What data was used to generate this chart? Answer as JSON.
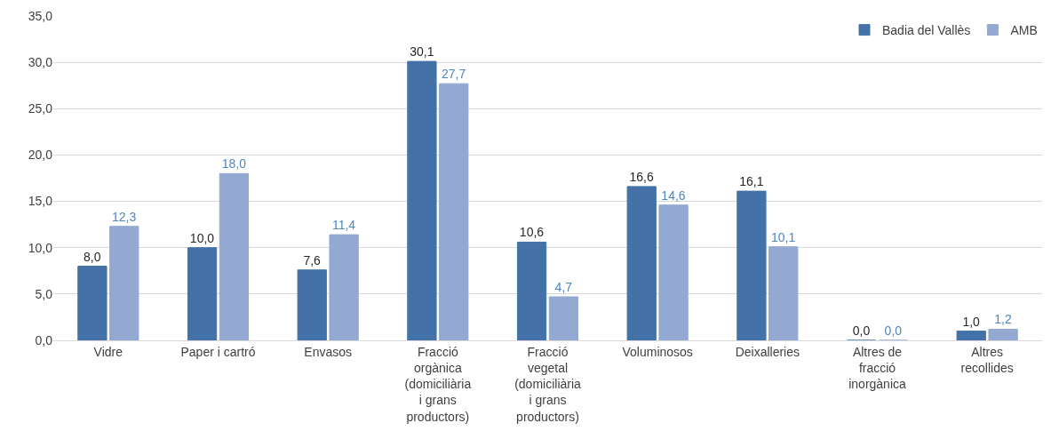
{
  "chart_data": {
    "type": "bar",
    "categories": [
      "Vidre",
      "Paper i cartró",
      "Envasos",
      "Fracció orgànica (domiciliària i grans productors)",
      "Fracció vegetal (domiciliària i grans productors)",
      "Voluminosos",
      "Deixalleries",
      "Altres de fracció inorgànica",
      "Altres recollides"
    ],
    "series": [
      {
        "name": "Badia del Vallès",
        "color": "#4472a8",
        "values": [
          8.0,
          10.0,
          7.6,
          30.1,
          10.6,
          16.6,
          16.1,
          0.0,
          1.0
        ],
        "value_labels": [
          "8,0",
          "10,0",
          "7,6",
          "30,1",
          "10,6",
          "16,6",
          "16,1",
          "0,0",
          "1,0"
        ]
      },
      {
        "name": "AMB",
        "color": "#93a9d2",
        "values": [
          12.3,
          18.0,
          11.4,
          27.7,
          4.7,
          14.6,
          10.1,
          0.0,
          1.2
        ],
        "value_labels": [
          "12,3",
          "18,0",
          "11,4",
          "27,7",
          "4,7",
          "14,6",
          "10,1",
          "0,0",
          "1,2"
        ]
      }
    ],
    "ylim": [
      0,
      35
    ],
    "yticks": [
      {
        "value": 0,
        "label": "0,0"
      },
      {
        "value": 5,
        "label": "5,0"
      },
      {
        "value": 10,
        "label": "10,0"
      },
      {
        "value": 15,
        "label": "15,0"
      },
      {
        "value": 20,
        "label": "20,0"
      },
      {
        "value": 25,
        "label": "25,0"
      },
      {
        "value": 30,
        "label": "30,0"
      },
      {
        "value": 35,
        "label": "35,0"
      }
    ],
    "grid": "y",
    "legend": "top right"
  }
}
